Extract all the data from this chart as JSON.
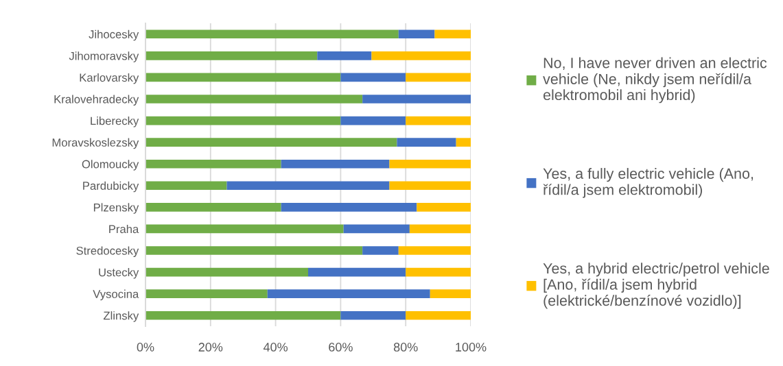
{
  "chart_data": {
    "type": "bar",
    "orientation": "horizontal",
    "stacked": true,
    "categories": [
      "Jihocesky",
      "Jihomoravsky",
      "Karlovarsky",
      "Kralovehradecky",
      "Liberecky",
      "Moravskoslezsky",
      "Olomoucky",
      "Pardubicky",
      "Plzensky",
      "Praha",
      "Stredocesky",
      "Ustecky",
      "Vysocina",
      "Zlinsky"
    ],
    "series": [
      {
        "name": "No, I have never driven an electric vehicle (Ne, nikdy jsem neřídil/a elektromobil ani hybrid)",
        "color": "#70ad47",
        "values": [
          77.8,
          52.8,
          60,
          66.7,
          60,
          77.3,
          41.7,
          25,
          41.7,
          60.9,
          66.7,
          50,
          37.5,
          60
        ]
      },
      {
        "name": "Yes, a fully electric vehicle (Ano, řídil/a jsem elektromobil)",
        "color": "#4472c4",
        "values": [
          11.1,
          16.7,
          20,
          33.3,
          20,
          18.2,
          33.3,
          50,
          41.7,
          20.3,
          11.1,
          30,
          50,
          20
        ]
      },
      {
        "name": "Yes, a hybrid electric/petrol vehicle [Ano, řídil/a jsem hybrid (elektrické/benzínové vozidlo)]",
        "color": "#ffc000",
        "values": [
          11.1,
          30.5,
          20,
          0,
          20,
          4.5,
          25,
          25,
          16.6,
          18.8,
          22.2,
          20,
          12.5,
          20
        ]
      }
    ],
    "xlim": [
      0,
      100
    ],
    "xticks": [
      {
        "value": 0,
        "label": "0%"
      },
      {
        "value": 20,
        "label": "20%"
      },
      {
        "value": 40,
        "label": "40%"
      },
      {
        "value": 60,
        "label": "60%"
      },
      {
        "value": 80,
        "label": "80%"
      },
      {
        "value": 100,
        "label": "100%"
      }
    ],
    "grid": "x",
    "legend": "right"
  }
}
